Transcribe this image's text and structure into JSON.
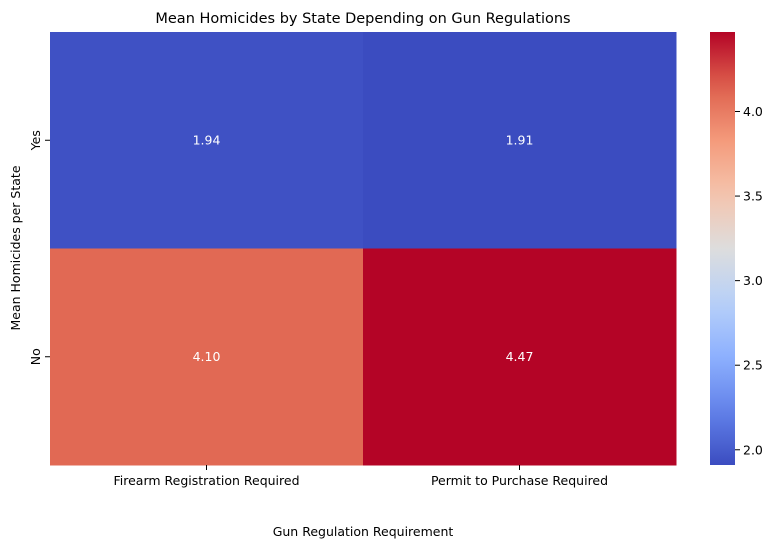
{
  "chart_data": {
    "type": "heatmap",
    "title": "Mean Homicides by State Depending on Gun Regulations",
    "xlabel": "Gun Regulation Requirement",
    "ylabel": "Mean Homicides per State",
    "x_categories": [
      "Firearm Registration Required",
      "Permit to Purchase Required"
    ],
    "y_categories": [
      "Yes",
      "No"
    ],
    "values": [
      [
        1.94,
        1.91
      ],
      [
        4.1,
        4.47
      ]
    ],
    "value_labels": [
      [
        "1.94",
        "1.91"
      ],
      [
        "4.10",
        "4.47"
      ]
    ],
    "colormap": "coolwarm",
    "vmin": 1.91,
    "vmax": 4.47,
    "colorbar_ticks": [
      2.0,
      2.5,
      3.0,
      3.5,
      4.0
    ],
    "colorbar_tick_labels": [
      "2.0",
      "2.5",
      "3.0",
      "3.5",
      "4.0"
    ],
    "cell_label_color": "#ffffff"
  }
}
